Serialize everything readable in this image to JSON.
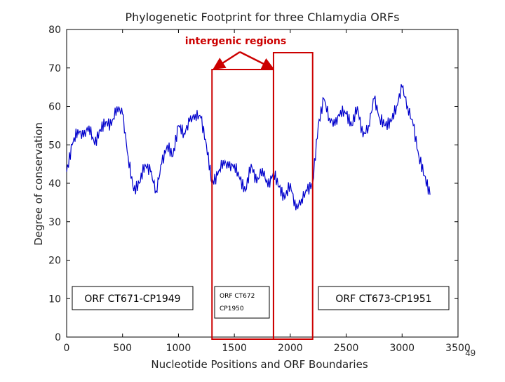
{
  "slide": {
    "page_number": "49"
  },
  "chart_data": {
    "type": "line",
    "title": "Phylogenetic Footprint for three Chlamydia ORFs",
    "xlabel": "Nucleotide Positions and ORF Boundaries",
    "ylabel": "Degree of conservation",
    "xlim": [
      0,
      3500
    ],
    "ylim": [
      0,
      80
    ],
    "x_ticks": [
      0,
      500,
      1000,
      1500,
      2000,
      2500,
      3000,
      3500
    ],
    "y_ticks": [
      0,
      10,
      20,
      30,
      40,
      50,
      60,
      70,
      80
    ],
    "grid": false,
    "colors": {
      "series": "#0000cc",
      "annotation": "#cc0000",
      "axes": "#000000",
      "text": "#222222"
    },
    "series": [
      {
        "name": "conservation",
        "x": [
          0,
          50,
          100,
          150,
          200,
          250,
          300,
          350,
          400,
          450,
          500,
          550,
          600,
          650,
          700,
          750,
          800,
          850,
          900,
          950,
          1000,
          1050,
          1100,
          1150,
          1200,
          1250,
          1300,
          1350,
          1400,
          1450,
          1500,
          1550,
          1600,
          1650,
          1700,
          1750,
          1800,
          1850,
          1900,
          1950,
          2000,
          2050,
          2100,
          2150,
          2200,
          2250,
          2300,
          2350,
          2400,
          2450,
          2500,
          2550,
          2600,
          2650,
          2700,
          2750,
          2800,
          2850,
          2900,
          2950,
          3000,
          3050,
          3100,
          3150,
          3200,
          3250
        ],
        "y": [
          43,
          50,
          54,
          52,
          55,
          50,
          54,
          56,
          55,
          60,
          58,
          47,
          38,
          40,
          45,
          43,
          38,
          45,
          50,
          47,
          55,
          53,
          56,
          58,
          57,
          50,
          40,
          42,
          46,
          44,
          45,
          41,
          38,
          45,
          40,
          44,
          39,
          43,
          39,
          36,
          40,
          33,
          36,
          38,
          40,
          55,
          62,
          57,
          55,
          59,
          58,
          55,
          60,
          52,
          55,
          62,
          57,
          55,
          56,
          60,
          65,
          60,
          55,
          47,
          42,
          37
        ]
      }
    ],
    "annotations": {
      "intergenic_label": "intergenic regions",
      "boxes": [
        {
          "x_start": 1300,
          "x_end": 1850,
          "label": ""
        },
        {
          "x_start": 1850,
          "x_end": 2200,
          "label": ""
        }
      ],
      "orf_labels": {
        "orf1": "ORF CT671-CP1949",
        "orf2_line1": "ORF CT672",
        "orf2_line2": "CP1950",
        "orf3": "ORF CT673-CP1951"
      }
    }
  }
}
